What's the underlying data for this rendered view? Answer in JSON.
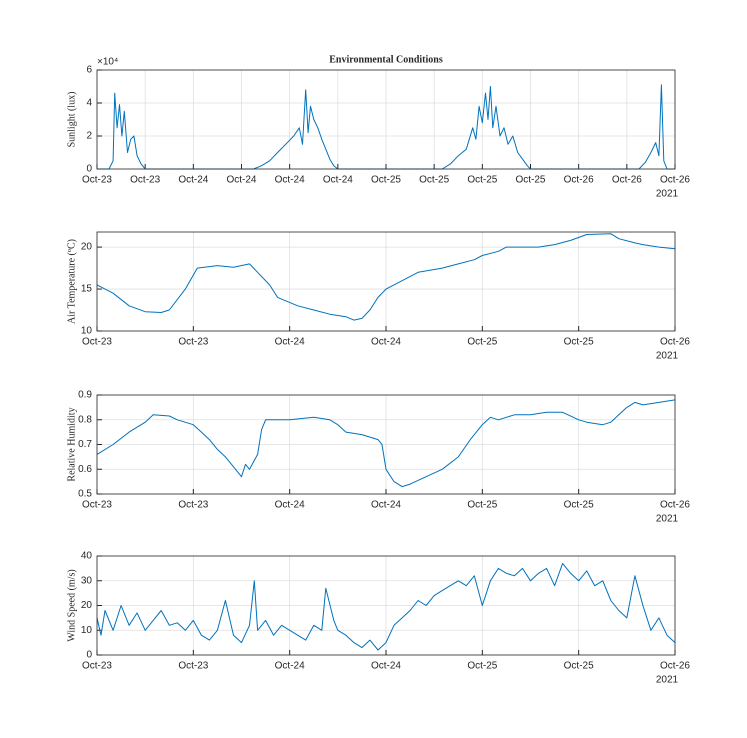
{
  "chart_data": [
    {
      "type": "line",
      "title": "Environmental Conditions",
      "ylabel": "Sunlight (lux)",
      "y_exponent_label": "×10⁴",
      "x_year_label": "2021",
      "color": "#0072BD",
      "grid": true,
      "xlim": [
        0,
        72
      ],
      "ylim": [
        0,
        6
      ],
      "yticks": [
        0,
        2,
        4,
        6
      ],
      "xticks": [
        {
          "value": 0,
          "label": "Oct-23"
        },
        {
          "value": 6,
          "label": "Oct-23"
        },
        {
          "value": 12,
          "label": "Oct-24"
        },
        {
          "value": 18,
          "label": "Oct-24"
        },
        {
          "value": 24,
          "label": "Oct-24"
        },
        {
          "value": 30,
          "label": "Oct-24"
        },
        {
          "value": 36,
          "label": "Oct-25"
        },
        {
          "value": 42,
          "label": "Oct-25"
        },
        {
          "value": 48,
          "label": "Oct-25"
        },
        {
          "value": 54,
          "label": "Oct-25"
        },
        {
          "value": 60,
          "label": "Oct-26"
        },
        {
          "value": 66,
          "label": "Oct-26"
        },
        {
          "value": 72,
          "label": "Oct-26"
        }
      ],
      "x": [
        0,
        1.5,
        2.0,
        2.2,
        2.5,
        2.8,
        3.1,
        3.4,
        3.8,
        4.2,
        4.6,
        5.0,
        5.5,
        6,
        19.5,
        20.5,
        21.5,
        22.5,
        23.5,
        24.5,
        25.2,
        25.6,
        26.0,
        26.3,
        26.6,
        27.0,
        27.5,
        28.0,
        28.5,
        29.0,
        29.5,
        30,
        43,
        44,
        45,
        46,
        46.8,
        47.2,
        47.6,
        48.0,
        48.4,
        48.7,
        49.0,
        49.3,
        49.7,
        50.2,
        50.7,
        51.2,
        51.8,
        52.4,
        53.0,
        53.6,
        54,
        67.5,
        68.3,
        69,
        69.6,
        70.0,
        70.3,
        70.6,
        71,
        72
      ],
      "values": [
        0,
        0,
        0.5,
        4.6,
        2.5,
        3.9,
        2.0,
        3.5,
        1.0,
        1.8,
        2.0,
        0.8,
        0.3,
        0,
        0,
        0.2,
        0.5,
        1.0,
        1.5,
        2.0,
        2.5,
        1.5,
        4.8,
        2.2,
        3.8,
        3.0,
        2.5,
        1.8,
        1.2,
        0.6,
        0.2,
        0,
        0,
        0.3,
        0.8,
        1.2,
        2.5,
        1.8,
        3.8,
        2.8,
        4.6,
        3.0,
        5.0,
        2.5,
        3.8,
        2.0,
        2.5,
        1.5,
        2.0,
        1.0,
        0.6,
        0.2,
        0,
        0,
        0.4,
        1.0,
        1.6,
        0.8,
        5.1,
        0.5,
        0,
        0
      ]
    },
    {
      "type": "line",
      "ylabel": "Air Temperature (ºC)",
      "x_year_label": "2021",
      "color": "#0072BD",
      "grid": true,
      "xlim": [
        0,
        72
      ],
      "ylim": [
        10,
        21.8
      ],
      "yticks": [
        10,
        15,
        20
      ],
      "xticks": [
        {
          "value": 0,
          "label": "Oct-23"
        },
        {
          "value": 12,
          "label": "Oct-23"
        },
        {
          "value": 24,
          "label": "Oct-24"
        },
        {
          "value": 36,
          "label": "Oct-24"
        },
        {
          "value": 48,
          "label": "Oct-25"
        },
        {
          "value": 60,
          "label": "Oct-25"
        },
        {
          "value": 72,
          "label": "Oct-26"
        }
      ],
      "x": [
        0,
        2,
        4,
        6,
        8,
        9,
        11,
        12.5,
        15,
        17,
        19,
        20,
        21.5,
        22.5,
        25,
        27,
        29,
        31,
        32,
        33,
        34,
        35,
        36,
        38,
        40,
        43,
        45,
        47,
        48,
        50,
        51,
        55,
        57,
        59,
        61,
        64,
        65,
        67,
        68,
        70,
        72
      ],
      "values": [
        15.5,
        14.5,
        13.0,
        12.3,
        12.2,
        12.5,
        15.0,
        17.5,
        17.8,
        17.6,
        18.0,
        17.0,
        15.5,
        14.0,
        13.0,
        12.5,
        12.0,
        11.7,
        11.3,
        11.5,
        12.5,
        14.0,
        15.0,
        16.0,
        17.0,
        17.5,
        18.0,
        18.5,
        19.0,
        19.5,
        20.0,
        20.0,
        20.3,
        20.8,
        21.5,
        21.6,
        21.0,
        20.5,
        20.3,
        20.0,
        19.8
      ]
    },
    {
      "type": "line",
      "ylabel": "Relative Humidity",
      "x_year_label": "2021",
      "color": "#0072BD",
      "grid": true,
      "xlim": [
        0,
        72
      ],
      "ylim": [
        0.5,
        0.9
      ],
      "yticks": [
        0.5,
        0.6,
        0.7,
        0.8,
        0.9
      ],
      "xticks": [
        {
          "value": 0,
          "label": "Oct-23"
        },
        {
          "value": 12,
          "label": "Oct-23"
        },
        {
          "value": 24,
          "label": "Oct-24"
        },
        {
          "value": 36,
          "label": "Oct-24"
        },
        {
          "value": 48,
          "label": "Oct-25"
        },
        {
          "value": 60,
          "label": "Oct-25"
        },
        {
          "value": 72,
          "label": "Oct-26"
        }
      ],
      "x": [
        0,
        2,
        4,
        6,
        7,
        9,
        10,
        12,
        13,
        14,
        15,
        16,
        17,
        18,
        18.5,
        19,
        20,
        20.5,
        21,
        24,
        27,
        29,
        30,
        31,
        33,
        34,
        35,
        35.5,
        36,
        37,
        38,
        39,
        41,
        43,
        45,
        46.5,
        48,
        49,
        50,
        52,
        54,
        56,
        58,
        60,
        61,
        63,
        64,
        65,
        66,
        67,
        68,
        70,
        72
      ],
      "values": [
        0.66,
        0.7,
        0.75,
        0.79,
        0.82,
        0.815,
        0.8,
        0.78,
        0.75,
        0.72,
        0.68,
        0.65,
        0.61,
        0.57,
        0.62,
        0.6,
        0.66,
        0.76,
        0.8,
        0.8,
        0.81,
        0.8,
        0.78,
        0.75,
        0.74,
        0.73,
        0.72,
        0.7,
        0.6,
        0.55,
        0.53,
        0.54,
        0.57,
        0.6,
        0.65,
        0.72,
        0.78,
        0.81,
        0.8,
        0.82,
        0.82,
        0.83,
        0.83,
        0.8,
        0.79,
        0.78,
        0.79,
        0.82,
        0.85,
        0.87,
        0.86,
        0.87,
        0.88
      ]
    },
    {
      "type": "line",
      "ylabel": "Wind Speed (m/s)",
      "x_year_label": "2021",
      "color": "#0072BD",
      "grid": true,
      "xlim": [
        0,
        72
      ],
      "ylim": [
        0,
        40
      ],
      "yticks": [
        0,
        10,
        20,
        30,
        40
      ],
      "xticks": [
        {
          "value": 0,
          "label": "Oct-23"
        },
        {
          "value": 12,
          "label": "Oct-23"
        },
        {
          "value": 24,
          "label": "Oct-24"
        },
        {
          "value": 36,
          "label": "Oct-24"
        },
        {
          "value": 48,
          "label": "Oct-25"
        },
        {
          "value": 60,
          "label": "Oct-25"
        },
        {
          "value": 72,
          "label": "Oct-26"
        }
      ],
      "x": [
        0,
        0.5,
        1,
        2,
        3,
        4,
        5,
        6,
        7,
        8,
        9,
        10,
        11,
        12,
        13,
        14,
        15,
        16,
        17,
        18,
        19,
        19.6,
        20,
        21,
        22,
        23,
        24,
        25,
        26,
        27,
        28,
        28.5,
        29.5,
        30,
        31,
        32,
        33,
        34,
        35,
        36,
        37,
        38,
        39,
        40,
        41,
        42,
        43,
        44,
        45,
        46,
        47,
        48,
        49,
        50,
        51,
        52,
        53,
        54,
        55,
        56,
        57,
        58,
        59,
        60,
        61,
        62,
        63,
        64,
        65,
        66,
        67,
        68,
        69,
        70,
        71,
        72
      ],
      "values": [
        15,
        8,
        18,
        10,
        20,
        12,
        17,
        10,
        14,
        18,
        12,
        13,
        10,
        14,
        8,
        6,
        10,
        22,
        8,
        5,
        12,
        30,
        10,
        14,
        8,
        12,
        10,
        8,
        6,
        12,
        10,
        27,
        14,
        10,
        8,
        5,
        3,
        6,
        2,
        5,
        12,
        15,
        18,
        22,
        20,
        24,
        26,
        28,
        30,
        28,
        32,
        20,
        30,
        35,
        33,
        32,
        35,
        30,
        33,
        35,
        28,
        37,
        33,
        30,
        34,
        28,
        30,
        22,
        18,
        15,
        32,
        20,
        10,
        15,
        8,
        5
      ]
    }
  ]
}
